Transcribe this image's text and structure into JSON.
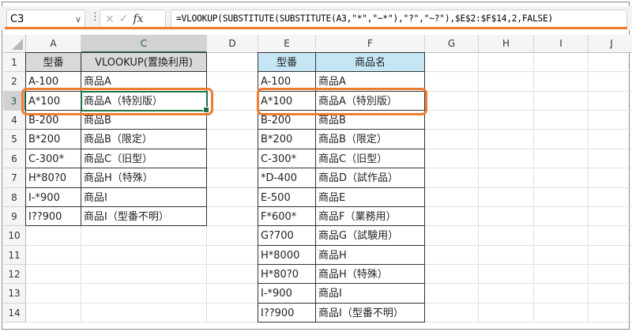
{
  "formula_bar": {
    "name_box": "C3",
    "cancel_icon": "×",
    "enter_icon": "✓",
    "fx_label": "fx",
    "formula": "=VLOOKUP(SUBSTITUTE(SUBSTITUTE(A3,\"*\",\"~*\"),\"?\",\"~?\"),$E$2:$F$14,2,FALSE)"
  },
  "columns": [
    "A",
    "C",
    "D",
    "E",
    "F",
    "G",
    "H",
    "I",
    "J"
  ],
  "rows": [
    "1",
    "2",
    "3",
    "4",
    "5",
    "6",
    "7",
    "8",
    "9",
    "10",
    "11",
    "12",
    "13",
    "14"
  ],
  "active_cell": "C3",
  "left_table": {
    "headers": [
      "型番",
      "VLOOKUP(置換利用)"
    ],
    "rows": [
      [
        "A-100",
        "商品A"
      ],
      [
        "A*100",
        "商品A（特別版）"
      ],
      [
        "B-200",
        "商品B"
      ],
      [
        "B*200",
        "商品B（限定）"
      ],
      [
        "C-300*",
        "商品C（旧型）"
      ],
      [
        "H*80?0",
        "商品H（特殊）"
      ],
      [
        "I-*900",
        "商品I"
      ],
      [
        "I??900",
        "商品I（型番不明）"
      ]
    ]
  },
  "right_table": {
    "headers": [
      "型番",
      "商品名"
    ],
    "rows": [
      [
        "A-100",
        "商品A"
      ],
      [
        "A*100",
        "商品A（特別版）"
      ],
      [
        "B-200",
        "商品B"
      ],
      [
        "B*200",
        "商品B（限定）"
      ],
      [
        "C-300*",
        "商品C（旧型）"
      ],
      [
        "*D-400",
        "商品D（試作品）"
      ],
      [
        "E-500",
        "商品E"
      ],
      [
        "F*600*",
        "商品F（業務用）"
      ],
      [
        "G?700",
        "商品G（試験用）"
      ],
      [
        "H*8000",
        "商品H"
      ],
      [
        "H*80?0",
        "商品H（特殊）"
      ],
      [
        "I-*900",
        "商品I"
      ],
      [
        "I??900",
        "商品I（型番不明）"
      ]
    ]
  },
  "colors": {
    "highlight": "#ee7d31",
    "selection": "#217346",
    "left_header_fill": "#d9d9d9",
    "right_header_fill": "#c6e6f5"
  }
}
